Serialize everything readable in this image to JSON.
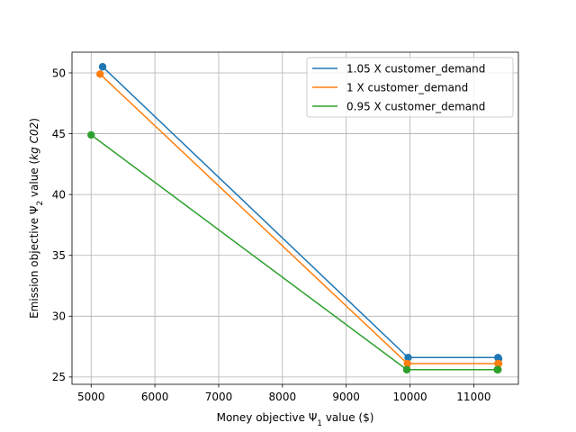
{
  "chart_data": {
    "type": "line",
    "title": "",
    "xlabel_parts": [
      "Money objective ",
      "Ψ",
      "1",
      " value ($)"
    ],
    "ylabel_parts": [
      "Emission objective ",
      "Ψ",
      "2",
      " value (",
      "kg C02",
      ")"
    ],
    "xlim": [
      4700,
      11700
    ],
    "ylim": [
      24.4,
      51.7
    ],
    "xticks": [
      5000,
      6000,
      7000,
      8000,
      9000,
      10000,
      11000
    ],
    "yticks": [
      25,
      30,
      35,
      40,
      45,
      50
    ],
    "grid": true,
    "legend_position": "top-right",
    "series": [
      {
        "name": "1.05 X customer_demand",
        "color": "#1f77b4",
        "x": [
          5180,
          9970,
          11380,
          11390
        ],
        "y": [
          50.5,
          26.6,
          26.6,
          26.5
        ]
      },
      {
        "name": "1 X customer_demand",
        "color": "#ff7f0e",
        "x": [
          5140,
          9960,
          11380,
          11390
        ],
        "y": [
          49.9,
          26.1,
          26.1,
          26.1
        ]
      },
      {
        "name": "0.95 X customer_demand",
        "color": "#2ca02c",
        "x": [
          5000,
          9950,
          11370,
          11380
        ],
        "y": [
          44.9,
          25.6,
          25.6,
          25.6
        ]
      }
    ]
  }
}
